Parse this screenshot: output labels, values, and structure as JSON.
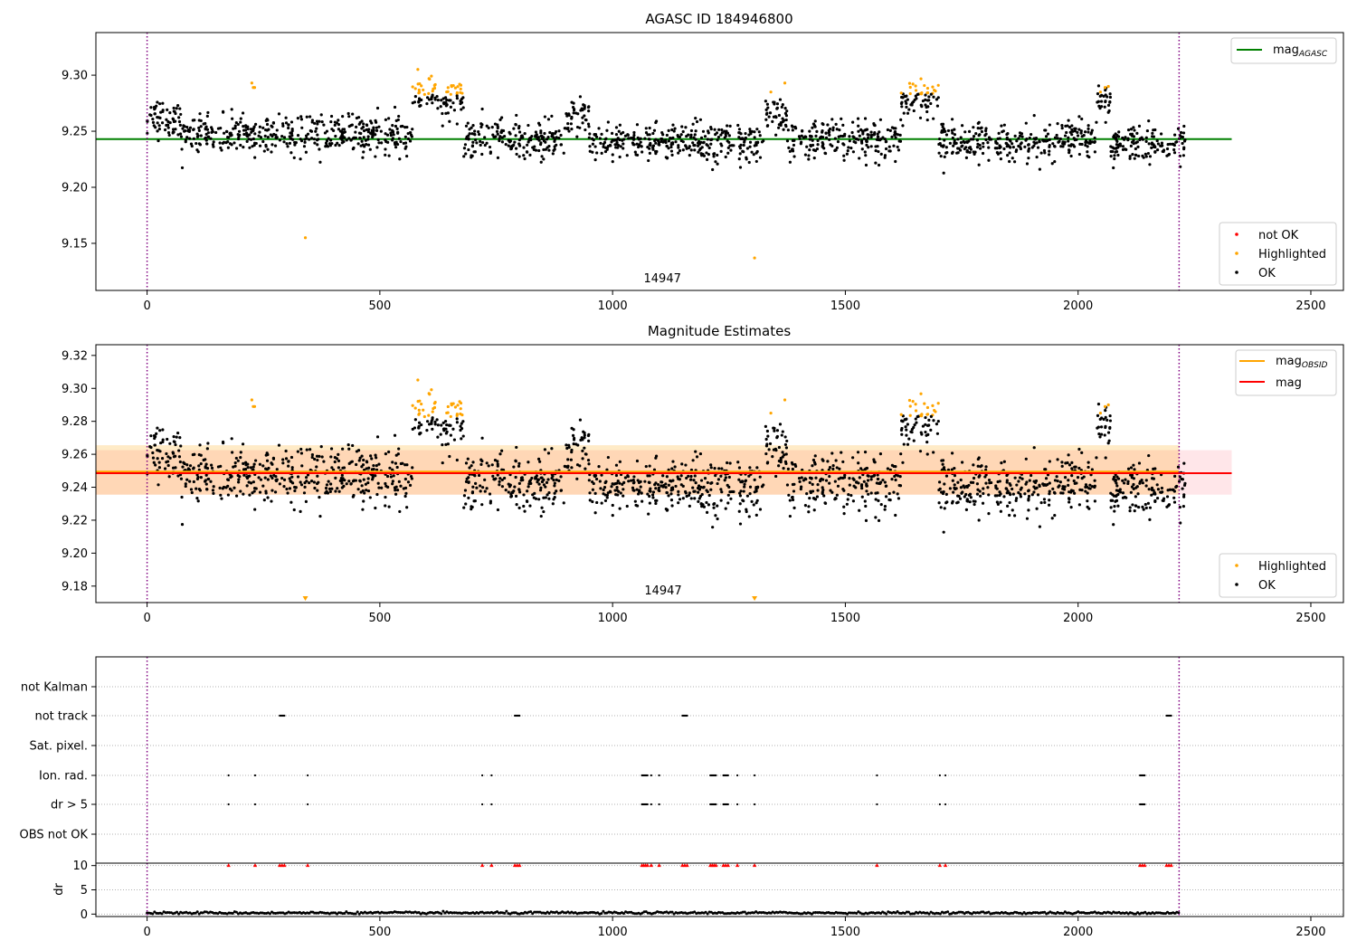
{
  "chart_data": [
    {
      "type": "scatter",
      "title": "AGASC ID 184946800",
      "xlim": [
        -110,
        2570
      ],
      "ylim": [
        9.108,
        9.338
      ],
      "xticks": [
        0,
        500,
        1000,
        1500,
        2000,
        2500
      ],
      "yticks": [
        9.15,
        9.2,
        9.25,
        9.3
      ],
      "ytick_labels": [
        "9.15",
        "9.20",
        "9.25",
        "9.30"
      ],
      "obsid_label": "14947",
      "obsid_label_x": 1107,
      "vlines": [
        0,
        2217
      ],
      "hlines": [
        {
          "name": "mag_AGASC",
          "y": 9.243,
          "x": [
            -110,
            2330
          ],
          "color": "#008000"
        }
      ],
      "legend_lines": [
        {
          "label": "mag",
          "sub": "AGASC",
          "color": "#008000"
        }
      ],
      "legend_points": [
        {
          "label": "not OK",
          "color": "#ff0000"
        },
        {
          "label": "Highlighted",
          "color": "#ffa500"
        },
        {
          "label": "OK",
          "color": "#000000"
        }
      ],
      "outliers": [
        [
          340,
          9.155
        ],
        [
          1305,
          9.137
        ]
      ],
      "base_level": 9.244,
      "noise": 0.0085,
      "segments": [
        {
          "x": [
            0,
            70
          ],
          "y": 9.262
        },
        {
          "x": [
            70,
            570
          ],
          "y": 9.247
        },
        {
          "x": [
            570,
            680
          ],
          "y": 9.279,
          "hl": 0.45
        },
        {
          "x": [
            680,
            900
          ],
          "y": 9.243
        },
        {
          "x": [
            900,
            950
          ],
          "y": 9.262
        },
        {
          "x": [
            950,
            1325
          ],
          "y": 9.24
        },
        {
          "x": [
            1325,
            1375
          ],
          "y": 9.262
        },
        {
          "x": [
            1375,
            1620
          ],
          "y": 9.242
        },
        {
          "x": [
            1620,
            1700
          ],
          "y": 9.279,
          "hl": 0.5
        },
        {
          "x": [
            1700,
            2040
          ],
          "y": 9.241
        },
        {
          "x": [
            2040,
            2070
          ],
          "y": 9.275
        },
        {
          "x": [
            2070,
            2230
          ],
          "y": 9.238
        }
      ],
      "extra_highlight": [
        [
          225,
          9.293
        ],
        [
          228,
          9.289
        ],
        [
          231,
          9.289
        ],
        [
          1340,
          9.285
        ],
        [
          1370,
          9.293
        ],
        [
          2048,
          9.285
        ],
        [
          2058,
          9.289
        ],
        [
          2065,
          9.29
        ]
      ]
    },
    {
      "type": "scatter",
      "title": "Magnitude Estimates",
      "xlim": [
        -110,
        2570
      ],
      "ylim": [
        9.17,
        9.3265
      ],
      "xticks": [
        0,
        500,
        1000,
        1500,
        2000,
        2500
      ],
      "yticks": [
        9.18,
        9.2,
        9.22,
        9.24,
        9.26,
        9.28,
        9.3,
        9.32
      ],
      "ytick_labels": [
        "9.18",
        "9.20",
        "9.22",
        "9.24",
        "9.26",
        "9.28",
        "9.30",
        "9.32"
      ],
      "obsid_label": "14947",
      "obsid_label_x": 1107,
      "vlines": [
        0,
        2217
      ],
      "hlines": [
        {
          "name": "mag_OBSID",
          "y": 9.2495,
          "x": [
            -110,
            2217
          ],
          "color": "#ffa500"
        },
        {
          "name": "mag",
          "y": 9.2485,
          "x": [
            -110,
            2330
          ],
          "color": "#ff0000"
        }
      ],
      "bands": [
        {
          "y": [
            9.2355,
            9.2625
          ],
          "x": [
            -110,
            2330
          ],
          "color": "#ffb6c1",
          "opacity": 0.35
        },
        {
          "y": [
            9.2355,
            9.2655
          ],
          "x": [
            -110,
            2217
          ],
          "color": "#ffa500",
          "opacity": 0.22
        }
      ],
      "legend_lines": [
        {
          "label": "mag",
          "sub": "OBSID",
          "color": "#ffa500"
        },
        {
          "label": "mag",
          "sub": "",
          "color": "#ff0000"
        }
      ],
      "legend_points": [
        {
          "label": "Highlighted",
          "color": "#ffa500"
        },
        {
          "label": "OK",
          "color": "#000000"
        }
      ],
      "down_markers": [
        340,
        1305
      ],
      "noise": 0.0085
    },
    {
      "type": "scatter",
      "flag_categories": [
        "not Kalman",
        "not track",
        "Sat. pixel.",
        "Ion. rad.",
        "dr > 5",
        "OBS not OK"
      ],
      "flag_events": {
        "not track": [
          [
            285,
            295
          ],
          [
            790,
            800
          ],
          [
            1150,
            1160
          ],
          [
            2190,
            2200
          ]
        ],
        "Ion. rad.": [
          [
            175,
            175
          ],
          [
            232,
            232
          ],
          [
            345,
            345
          ],
          [
            720,
            720
          ],
          [
            740,
            740
          ],
          [
            1063,
            1075
          ],
          [
            1083,
            1083
          ],
          [
            1100,
            1100
          ],
          [
            1210,
            1222
          ],
          [
            1238,
            1248
          ],
          [
            1268,
            1268
          ],
          [
            1305,
            1305
          ],
          [
            1568,
            1568
          ],
          [
            1703,
            1703
          ],
          [
            1715,
            1715
          ],
          [
            2133,
            2143
          ]
        ],
        "dr > 5": [
          [
            175,
            175
          ],
          [
            232,
            232
          ],
          [
            345,
            345
          ],
          [
            720,
            720
          ],
          [
            740,
            740
          ],
          [
            1063,
            1075
          ],
          [
            1083,
            1083
          ],
          [
            1100,
            1100
          ],
          [
            1210,
            1222
          ],
          [
            1238,
            1248
          ],
          [
            1268,
            1268
          ],
          [
            1305,
            1305
          ],
          [
            1568,
            1568
          ],
          [
            1703,
            1703
          ],
          [
            1715,
            1715
          ],
          [
            2133,
            2143
          ]
        ]
      },
      "dr_ylabel": "dr",
      "dr_ylim": [
        -0.5,
        10.5
      ],
      "dr_yticks": [
        0,
        5,
        10
      ],
      "dr_ytick_labels": [
        "0",
        "5",
        "10"
      ],
      "dr_red_x": [
        175,
        232,
        285,
        290,
        295,
        345,
        720,
        740,
        790,
        795,
        800,
        1063,
        1067,
        1071,
        1075,
        1083,
        1100,
        1150,
        1155,
        1160,
        1210,
        1214,
        1218,
        1222,
        1238,
        1243,
        1248,
        1268,
        1305,
        1568,
        1703,
        1715,
        2133,
        2138,
        2143,
        2190,
        2195,
        2200
      ],
      "xlim": [
        -110,
        2570
      ],
      "xticks": [
        0,
        500,
        1000,
        1500,
        2000,
        2500
      ],
      "vlines": [
        0,
        2217
      ]
    }
  ]
}
